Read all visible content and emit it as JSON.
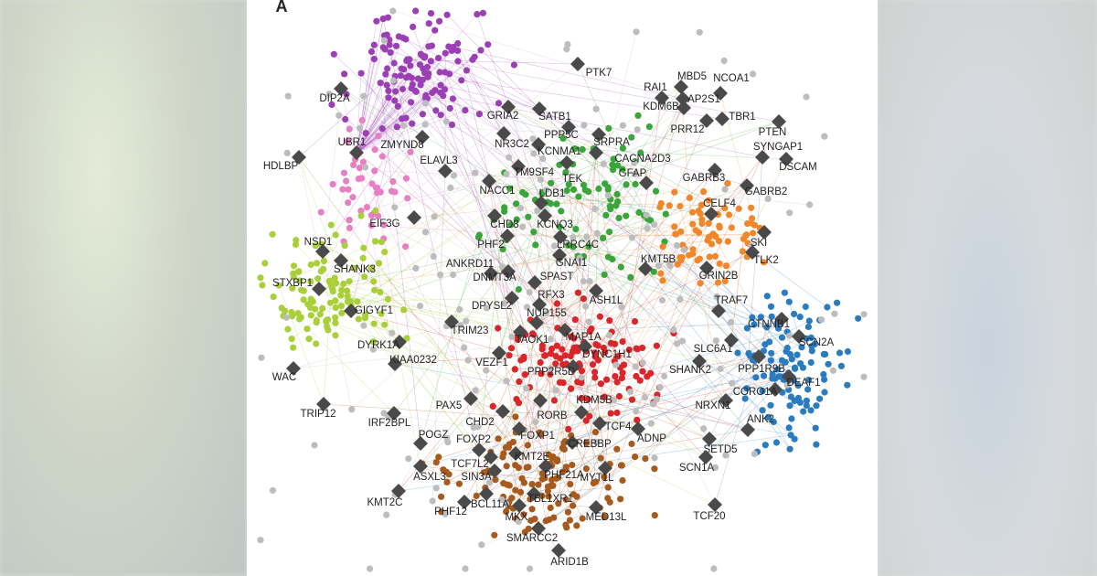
{
  "panel_label": "A",
  "nodes": [
    {
      "label": "PTK7"
    },
    {
      "label": "RAI1"
    },
    {
      "label": "MBD5"
    },
    {
      "label": "NCOA1"
    },
    {
      "label": "AP2S1"
    },
    {
      "label": "DIP2A"
    },
    {
      "label": "KDM6B"
    },
    {
      "label": "TBR1"
    },
    {
      "label": "GRIA2"
    },
    {
      "label": "SATB1"
    },
    {
      "label": "PTEN"
    },
    {
      "label": "PRR12"
    },
    {
      "label": "PPP5C"
    },
    {
      "label": "NR3C2"
    },
    {
      "label": "UBR1"
    },
    {
      "label": "ZMYND8"
    },
    {
      "label": "SRPRA"
    },
    {
      "label": "KCNMA1"
    },
    {
      "label": "SYNGAP1"
    },
    {
      "label": "HDLBP"
    },
    {
      "label": "ELAVL3"
    },
    {
      "label": "CACNA2D3"
    },
    {
      "label": "DSCAM"
    },
    {
      "label": "TM9SF4"
    },
    {
      "label": "TEK"
    },
    {
      "label": "GFAP"
    },
    {
      "label": "GABRB3"
    },
    {
      "label": "NACC1"
    },
    {
      "label": "LDB1"
    },
    {
      "label": "GABRB2"
    },
    {
      "label": "CELF4"
    },
    {
      "label": "EIF3G"
    },
    {
      "label": "CHD8"
    },
    {
      "label": "KCNQ3"
    },
    {
      "label": "NSD1"
    },
    {
      "label": "PHF2"
    },
    {
      "label": "LRRC4C"
    },
    {
      "label": "SKI"
    },
    {
      "label": "SHANK3"
    },
    {
      "label": "ANKRD11"
    },
    {
      "label": "GNAI1"
    },
    {
      "label": "KMT5B"
    },
    {
      "label": "TLK2"
    },
    {
      "label": "DNMT3A"
    },
    {
      "label": "SPAST"
    },
    {
      "label": "GRIN2B"
    },
    {
      "label": "STXBP1"
    },
    {
      "label": "DPYSL2"
    },
    {
      "label": "RFX3"
    },
    {
      "label": "ASH1L"
    },
    {
      "label": "TRAF7"
    },
    {
      "label": "GIGYF1"
    },
    {
      "label": "NUP155"
    },
    {
      "label": "TRIM23"
    },
    {
      "label": "TAOK1"
    },
    {
      "label": "MAP1A"
    },
    {
      "label": "CTNNB1"
    },
    {
      "label": "DYRK1A"
    },
    {
      "label": "SCN2A"
    },
    {
      "label": "DYNC1H1"
    },
    {
      "label": "SLC6A1"
    },
    {
      "label": "VEZF1"
    },
    {
      "label": "KIAA0232"
    },
    {
      "label": "PPP1R9B"
    },
    {
      "label": "PPP2R5D"
    },
    {
      "label": "SHANK2"
    },
    {
      "label": "WAC"
    },
    {
      "label": "DEAF1"
    },
    {
      "label": "CORO1A"
    },
    {
      "label": "KDM5B"
    },
    {
      "label": "NRXN1"
    },
    {
      "label": "PAX5"
    },
    {
      "label": "TRIP12"
    },
    {
      "label": "RORB"
    },
    {
      "label": "ANK2"
    },
    {
      "label": "IRF2BPL"
    },
    {
      "label": "CHD2"
    },
    {
      "label": "TCF4"
    },
    {
      "label": "POGZ"
    },
    {
      "label": "FOXP1"
    },
    {
      "label": "ADNP"
    },
    {
      "label": "FOXP2"
    },
    {
      "label": "CREBBP"
    },
    {
      "label": "SETD5"
    },
    {
      "label": "KMT2E"
    },
    {
      "label": "TCF7L2"
    },
    {
      "label": "SCN1A"
    },
    {
      "label": "ASXL3"
    },
    {
      "label": "SIN3A"
    },
    {
      "label": "PHF21A"
    },
    {
      "label": "MYT1L"
    },
    {
      "label": "KMT2C"
    },
    {
      "label": "BCL11A"
    },
    {
      "label": "TBL1XR1"
    },
    {
      "label": "PHF12"
    },
    {
      "label": "MKX"
    },
    {
      "label": "MED13L"
    },
    {
      "label": "TCF20"
    },
    {
      "label": "SMARCC2"
    },
    {
      "label": "ARID1B"
    }
  ]
}
